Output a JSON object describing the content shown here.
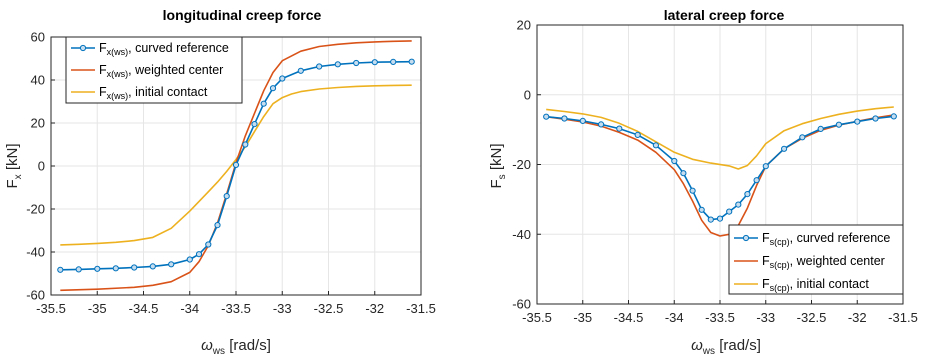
{
  "colors": {
    "blue": "#0072bd",
    "orange": "#d95319",
    "yellow": "#edb120",
    "grid": "#e6e6e6",
    "axis": "#262626"
  },
  "chart_data": [
    {
      "type": "line",
      "title": "longitudinal creep force",
      "xlabel": {
        "main": "ω",
        "sub": "ws",
        "rest": " [rad/s]"
      },
      "ylabel": {
        "main": "F",
        "sub": "x",
        "rest": " [kN]"
      },
      "xlim": [
        -35.5,
        -31.5
      ],
      "ylim": [
        -60,
        60
      ],
      "xticks": [
        -35.5,
        -35,
        -34.5,
        -34,
        -33.5,
        -33,
        -32.5,
        -32,
        -31.5
      ],
      "xtick_labels": [
        "-35.5",
        "-35",
        "-34.5",
        "-34",
        "-33.5",
        "-33",
        "-32.5",
        "-32",
        "-31.5"
      ],
      "yticks": [
        -60,
        -40,
        -20,
        0,
        20,
        40,
        60
      ],
      "ytick_labels": [
        "-60",
        "-40",
        "-20",
        "0",
        "20",
        "40",
        "60"
      ],
      "grid": true,
      "legend_position": "top-left",
      "series": [
        {
          "name": {
            "main": "F",
            "sub": "x(ws)",
            "rest": ", curved reference"
          },
          "color": "#0072bd",
          "marker": "circle",
          "x": [
            -35.4,
            -35.2,
            -35.0,
            -34.8,
            -34.6,
            -34.4,
            -34.2,
            -34.0,
            -33.9,
            -33.8,
            -33.7,
            -33.6,
            -33.5,
            -33.4,
            -33.3,
            -33.2,
            -33.1,
            -33.0,
            -32.8,
            -32.6,
            -32.4,
            -32.2,
            -32.0,
            -31.8,
            -31.6
          ],
          "y": [
            -48.3,
            -48.1,
            -47.8,
            -47.6,
            -47.2,
            -46.7,
            -45.7,
            -43.5,
            -41.0,
            -36.5,
            -27.5,
            -14.0,
            0.5,
            10.0,
            19.5,
            29.0,
            36.2,
            40.7,
            44.3,
            46.3,
            47.3,
            47.9,
            48.3,
            48.4,
            48.5
          ]
        },
        {
          "name": {
            "main": "F",
            "sub": "x(ws)",
            "rest": ", weighted center"
          },
          "color": "#d95319",
          "marker": "none",
          "x": [
            -35.4,
            -35.0,
            -34.6,
            -34.4,
            -34.2,
            -34.0,
            -33.9,
            -33.8,
            -33.7,
            -33.6,
            -33.5,
            -33.4,
            -33.3,
            -33.2,
            -33.1,
            -33.0,
            -32.8,
            -32.6,
            -32.4,
            -32.2,
            -32.0,
            -31.8,
            -31.6
          ],
          "y": [
            -57.8,
            -57.3,
            -56.4,
            -55.5,
            -53.8,
            -49.5,
            -44.5,
            -37.0,
            -26.5,
            -13.0,
            1.5,
            14.0,
            24.5,
            35.0,
            43.5,
            49.0,
            53.4,
            55.6,
            56.6,
            57.3,
            57.7,
            58.0,
            58.2
          ]
        },
        {
          "name": {
            "main": "F",
            "sub": "x(ws)",
            "rest": ", initial contact"
          },
          "color": "#edb120",
          "marker": "none",
          "x": [
            -35.4,
            -35.2,
            -35.0,
            -34.8,
            -34.6,
            -34.4,
            -34.2,
            -34.0,
            -33.8,
            -33.7,
            -33.6,
            -33.5,
            -33.4,
            -33.3,
            -33.2,
            -33.1,
            -33.0,
            -32.9,
            -32.8,
            -32.6,
            -32.4,
            -32.2,
            -32.0,
            -31.8,
            -31.6
          ],
          "y": [
            -36.7,
            -36.4,
            -36.0,
            -35.5,
            -34.7,
            -33.2,
            -29.0,
            -21.0,
            -12.0,
            -7.5,
            -2.5,
            3.0,
            9.0,
            16.0,
            23.0,
            29.0,
            31.8,
            33.5,
            34.6,
            35.8,
            36.5,
            37.0,
            37.3,
            37.5,
            37.6
          ]
        }
      ]
    },
    {
      "type": "line",
      "title": "lateral creep force",
      "xlabel": {
        "main": "ω",
        "sub": "ws",
        "rest": " [rad/s]"
      },
      "ylabel": {
        "main": "F",
        "sub": "s",
        "rest": " [kN]"
      },
      "xlim": [
        -35.5,
        -31.5
      ],
      "ylim": [
        -60,
        20
      ],
      "xticks": [
        -35.5,
        -35,
        -34.5,
        -34,
        -33.5,
        -33,
        -32.5,
        -32,
        -31.5
      ],
      "xtick_labels": [
        "-35.5",
        "-35",
        "-34.5",
        "-34",
        "-33.5",
        "-33",
        "-32.5",
        "-32",
        "-31.5"
      ],
      "yticks": [
        -60,
        -40,
        -20,
        0,
        20
      ],
      "ytick_labels": [
        "-60",
        "-40",
        "-20",
        "0",
        "20"
      ],
      "grid": true,
      "legend_position": "bottom-right",
      "series": [
        {
          "name": {
            "main": "F",
            "sub": "s(cp)",
            "rest": ", curved reference"
          },
          "color": "#0072bd",
          "marker": "circle",
          "x": [
            -35.4,
            -35.2,
            -35.0,
            -34.8,
            -34.6,
            -34.4,
            -34.2,
            -34.0,
            -33.9,
            -33.8,
            -33.7,
            -33.6,
            -33.5,
            -33.4,
            -33.3,
            -33.2,
            -33.1,
            -33.0,
            -32.8,
            -32.6,
            -32.4,
            -32.2,
            -32.0,
            -31.8,
            -31.6
          ],
          "y": [
            -6.3,
            -6.8,
            -7.5,
            -8.5,
            -9.7,
            -11.5,
            -14.5,
            -19.0,
            -22.5,
            -27.5,
            -33.0,
            -35.8,
            -35.5,
            -33.5,
            -31.5,
            -28.5,
            -24.5,
            -20.5,
            -15.5,
            -12.2,
            -9.8,
            -8.6,
            -7.7,
            -6.8,
            -6.2
          ]
        },
        {
          "name": {
            "main": "F",
            "sub": "s(cp)",
            "rest": ", weighted center"
          },
          "color": "#d95319",
          "marker": "none",
          "x": [
            -35.4,
            -35.2,
            -35.0,
            -34.8,
            -34.6,
            -34.4,
            -34.2,
            -34.0,
            -33.9,
            -33.8,
            -33.7,
            -33.6,
            -33.5,
            -33.4,
            -33.3,
            -33.2,
            -33.1,
            -33.0,
            -32.8,
            -32.6,
            -32.4,
            -32.2,
            -32.0,
            -31.8,
            -31.6
          ],
          "y": [
            -6.3,
            -7.0,
            -7.8,
            -9.0,
            -10.8,
            -13.0,
            -16.5,
            -21.5,
            -25.5,
            -30.5,
            -36.0,
            -39.5,
            -40.5,
            -40.0,
            -37.5,
            -32.5,
            -26.0,
            -20.5,
            -15.5,
            -12.5,
            -10.2,
            -8.7,
            -7.6,
            -6.6,
            -5.8
          ]
        },
        {
          "name": {
            "main": "F",
            "sub": "s(cp)",
            "rest": ", initial contact"
          },
          "color": "#edb120",
          "marker": "none",
          "x": [
            -35.4,
            -35.2,
            -35.0,
            -34.8,
            -34.6,
            -34.4,
            -34.2,
            -34.0,
            -33.8,
            -33.6,
            -33.4,
            -33.3,
            -33.2,
            -33.1,
            -33.0,
            -32.8,
            -32.6,
            -32.4,
            -32.2,
            -32.0,
            -31.8,
            -31.6
          ],
          "y": [
            -4.2,
            -4.8,
            -5.5,
            -6.5,
            -8.2,
            -10.5,
            -13.5,
            -16.5,
            -18.5,
            -19.6,
            -20.4,
            -21.3,
            -20.3,
            -17.5,
            -14.0,
            -10.3,
            -8.3,
            -6.8,
            -5.6,
            -4.7,
            -4.0,
            -3.5
          ]
        }
      ]
    }
  ]
}
